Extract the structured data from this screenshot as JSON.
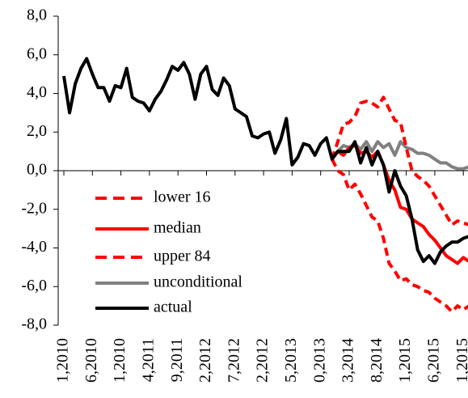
{
  "chart_data": {
    "type": "line",
    "categories": [
      "1,2010",
      null,
      null,
      null,
      null,
      "6,2010",
      null,
      null,
      null,
      null,
      "1,2010",
      null,
      null,
      null,
      null,
      "4,2011",
      null,
      null,
      null,
      null,
      "9,2011",
      null,
      null,
      null,
      null,
      "2,2012",
      null,
      null,
      null,
      null,
      "7,2012",
      null,
      null,
      null,
      null,
      "2,2012",
      null,
      null,
      null,
      null,
      "5,2013",
      null,
      null,
      null,
      null,
      "0,2013",
      null,
      null,
      null,
      null,
      "3,2014",
      null,
      null,
      null,
      null,
      "8,2014",
      null,
      null,
      null,
      null,
      "1,2015",
      null,
      null,
      null,
      null,
      "6,2015",
      null,
      null,
      null,
      null,
      "1,2015",
      null
    ],
    "ylim": [
      -8,
      8
    ],
    "yticks": [
      {
        "value": -8,
        "label": "-8,0"
      },
      {
        "value": -6,
        "label": "-6,0"
      },
      {
        "value": -4,
        "label": "-4,0"
      },
      {
        "value": -2,
        "label": "-2,0"
      },
      {
        "value": 0,
        "label": "0,0"
      },
      {
        "value": 2,
        "label": "2,0"
      },
      {
        "value": 4,
        "label": "4,0"
      },
      {
        "value": 6,
        "label": "6,0"
      },
      {
        "value": 8,
        "label": "8,0"
      }
    ],
    "series": [
      {
        "name": "lower 16",
        "color": "#ff0000",
        "dash": true,
        "values": [
          null,
          null,
          null,
          null,
          null,
          null,
          null,
          null,
          null,
          null,
          null,
          null,
          null,
          null,
          null,
          null,
          null,
          null,
          null,
          null,
          null,
          null,
          null,
          null,
          null,
          null,
          null,
          null,
          null,
          null,
          null,
          null,
          null,
          null,
          null,
          null,
          null,
          null,
          null,
          null,
          null,
          null,
          null,
          null,
          null,
          null,
          null,
          0.6,
          1.5,
          2.4,
          2.5,
          2.8,
          3.5,
          3.6,
          3.5,
          3.3,
          3.8,
          3.2,
          2.6,
          2.5,
          1.2,
          0.0,
          -0.3,
          -0.5,
          -0.8,
          -1.3,
          -1.8,
          -2.3,
          -2.8,
          -2.6,
          -2.7,
          -2.8
        ]
      },
      {
        "name": "median",
        "color": "#ff0000",
        "dash": false,
        "values": [
          null,
          null,
          null,
          null,
          null,
          null,
          null,
          null,
          null,
          null,
          null,
          null,
          null,
          null,
          null,
          null,
          null,
          null,
          null,
          null,
          null,
          null,
          null,
          null,
          null,
          null,
          null,
          null,
          null,
          null,
          null,
          null,
          null,
          null,
          null,
          null,
          null,
          null,
          null,
          null,
          null,
          null,
          null,
          null,
          null,
          null,
          null,
          0.6,
          1.0,
          0.8,
          1.2,
          1.3,
          0.9,
          1.0,
          0.7,
          1.0,
          0.3,
          -0.5,
          -1.0,
          -1.9,
          -2.0,
          -2.5,
          -2.7,
          -2.9,
          -3.3,
          -3.6,
          -4.0,
          -4.4,
          -4.6,
          -4.8,
          -4.5,
          -4.7
        ]
      },
      {
        "name": "upper 84",
        "color": "#ff0000",
        "dash": true,
        "values": [
          null,
          null,
          null,
          null,
          null,
          null,
          null,
          null,
          null,
          null,
          null,
          null,
          null,
          null,
          null,
          null,
          null,
          null,
          null,
          null,
          null,
          null,
          null,
          null,
          null,
          null,
          null,
          null,
          null,
          null,
          null,
          null,
          null,
          null,
          null,
          null,
          null,
          null,
          null,
          null,
          null,
          null,
          null,
          null,
          null,
          null,
          null,
          0.6,
          0.0,
          -0.2,
          -1.0,
          -0.7,
          -1.2,
          -1.8,
          -2.4,
          -2.6,
          -3.5,
          -4.8,
          -5.2,
          -5.7,
          -5.6,
          -5.9,
          -6.0,
          -6.2,
          -6.3,
          -6.6,
          -6.8,
          -7.0,
          -7.3,
          -7.0,
          -7.2,
          -7.0
        ]
      },
      {
        "name": "unconditional",
        "color": "#808080",
        "dash": false,
        "values": [
          null,
          null,
          null,
          null,
          null,
          null,
          null,
          null,
          null,
          null,
          null,
          null,
          null,
          null,
          null,
          null,
          null,
          null,
          null,
          null,
          null,
          null,
          null,
          null,
          null,
          null,
          null,
          null,
          null,
          null,
          null,
          null,
          null,
          null,
          null,
          null,
          null,
          null,
          null,
          null,
          null,
          null,
          null,
          null,
          null,
          null,
          null,
          0.6,
          1.0,
          1.3,
          1.2,
          1.4,
          1.1,
          1.5,
          1.0,
          1.5,
          1.2,
          1.4,
          0.8,
          1.5,
          1.2,
          1.1,
          0.9,
          0.9,
          0.8,
          0.6,
          0.4,
          0.4,
          0.2,
          0.1,
          0.1,
          0.2
        ]
      },
      {
        "name": "actual",
        "color": "#000000",
        "dash": false,
        "values": [
          4.9,
          3.0,
          4.5,
          5.3,
          5.8,
          5.0,
          4.3,
          4.3,
          3.6,
          4.4,
          4.3,
          5.3,
          3.8,
          3.6,
          3.5,
          3.1,
          3.7,
          4.1,
          4.7,
          5.4,
          5.2,
          5.6,
          5.0,
          3.7,
          5.0,
          5.4,
          4.2,
          3.9,
          4.8,
          4.4,
          3.2,
          3.0,
          2.8,
          1.8,
          1.7,
          1.9,
          2.0,
          0.9,
          1.6,
          2.7,
          0.3,
          0.7,
          1.4,
          1.3,
          0.8,
          1.4,
          1.7,
          0.6,
          1.0,
          1.0,
          1.0,
          1.5,
          0.4,
          1.2,
          0.3,
          1.0,
          0.3,
          -1.1,
          0.0,
          -0.8,
          -1.3,
          -2.5,
          -4.1,
          -4.7,
          -4.4,
          -4.8,
          -4.2,
          -3.9,
          -3.7,
          -3.7,
          -3.5,
          -3.4
        ]
      }
    ]
  }
}
